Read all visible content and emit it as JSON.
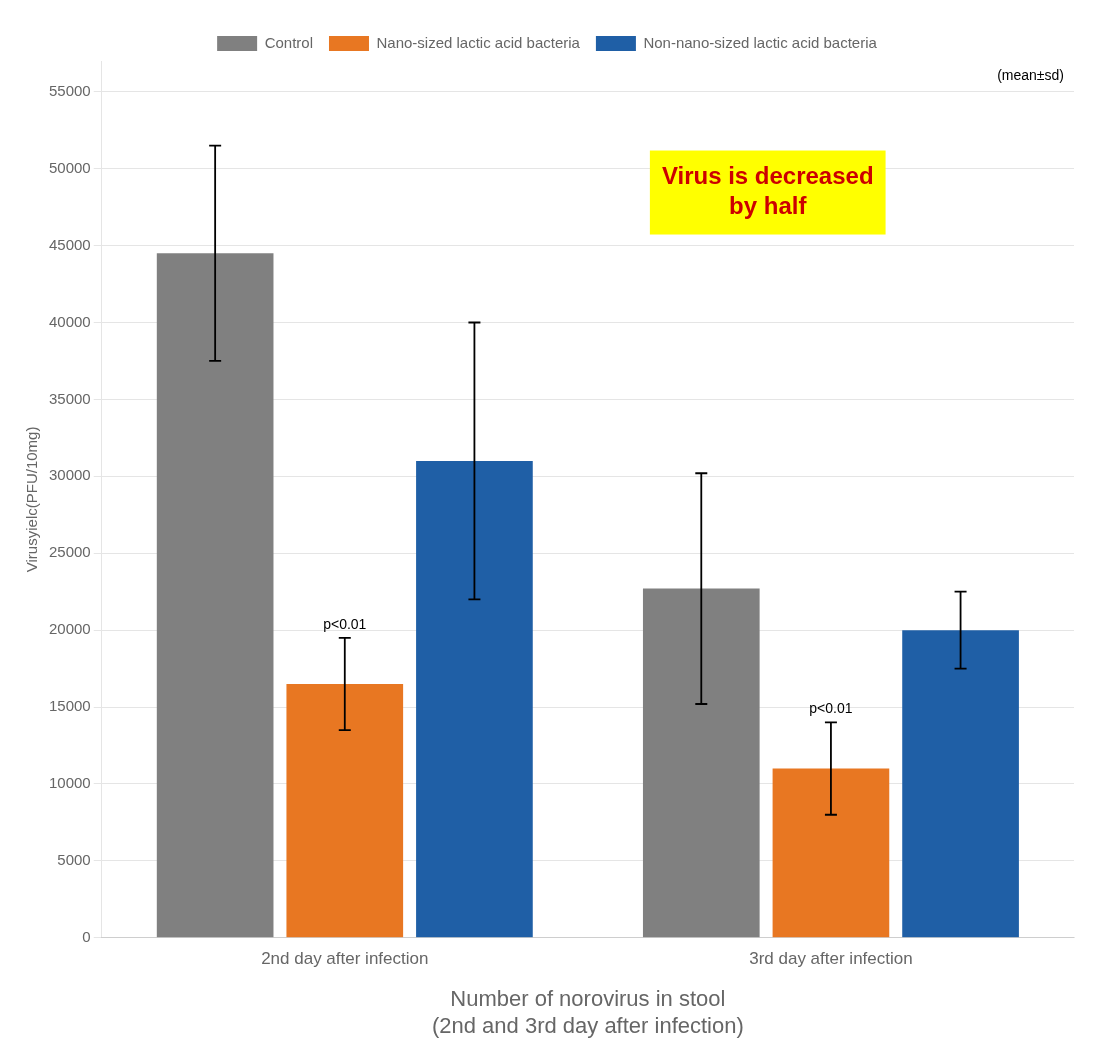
{
  "chart_data": {
    "type": "bar",
    "categories": [
      "2nd day after infection",
      "3rd day after infection"
    ],
    "series": [
      {
        "name": "Control",
        "color": "#808080",
        "values": [
          44500,
          22700
        ],
        "errors": [
          7000,
          7500
        ]
      },
      {
        "name": "Nano-sized lactic acid bacteria",
        "color": "#E87722",
        "values": [
          16500,
          11000
        ],
        "errors": [
          3000,
          3000
        ]
      },
      {
        "name": "Non-nano-sized lactic acid bacteria",
        "color": "#1F5FA6",
        "values": [
          31000,
          20000
        ],
        "errors": [
          9000,
          2500
        ]
      }
    ],
    "ylabel": "Virusyielc(PFU/10mg)",
    "xlabel": "Number of norovirus in stool\n(2nd and 3rd day after infection)",
    "ylim": [
      0,
      57000
    ],
    "yticks": [
      0,
      5000,
      10000,
      15000,
      20000,
      25000,
      30000,
      35000,
      40000,
      45000,
      50000,
      55000
    ],
    "grid": true,
    "legend": "top",
    "annotations": [
      {
        "text": "(mean±sd)"
      },
      {
        "text": "p<0.01",
        "series": "Nano-sized lactic acid bacteria",
        "category": "2nd day after infection"
      },
      {
        "text": "p<0.01",
        "series": "Nano-sized lactic acid bacteria",
        "category": "3rd day after infection"
      },
      {
        "text": "Virus is decreased\nby half",
        "color": "#CC0000",
        "background": "#FFFF00"
      }
    ]
  }
}
